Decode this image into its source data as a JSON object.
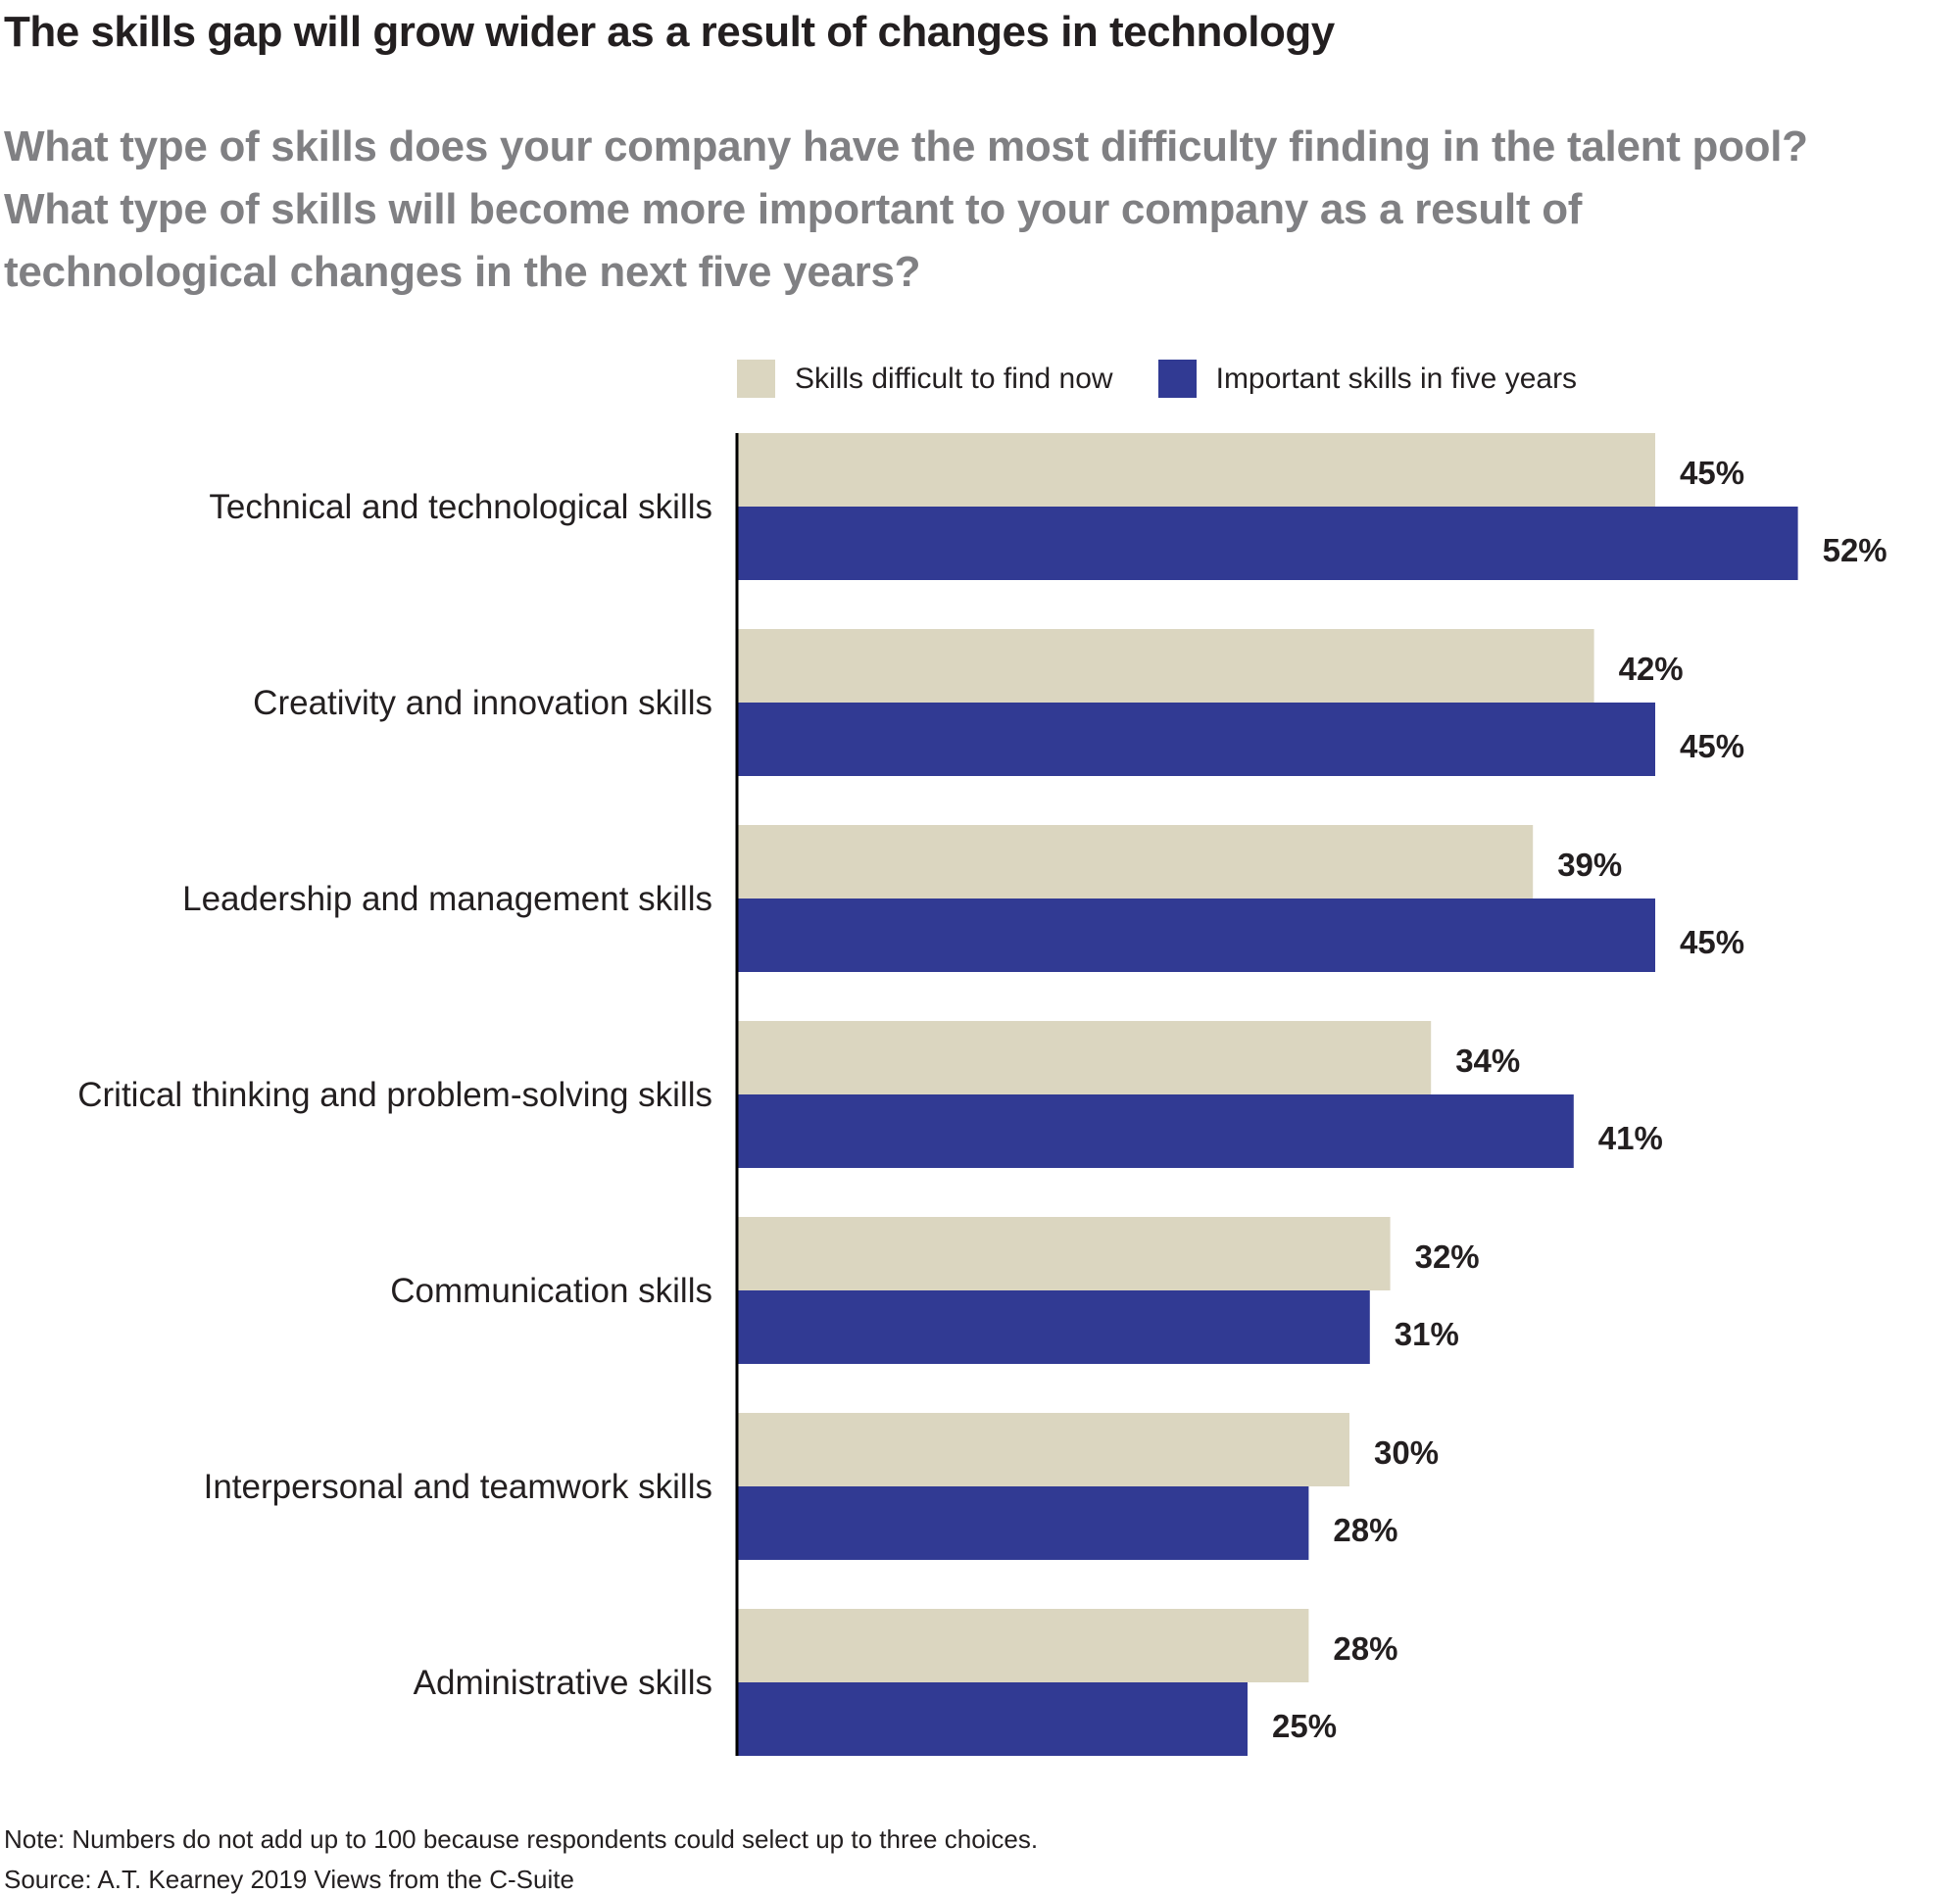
{
  "title": "The skills gap will grow wider as a result of changes in technology",
  "subtitle_lines": [
    "What type of skills does your company have the most difficulty finding in the talent pool?",
    "What type of skills will become more important to your company as a result of",
    "technological changes in the next five years?"
  ],
  "note": "Note: Numbers do not add up to 100 because respondents could select up to three choices.",
  "source": "Source: A.T. Kearney 2019 Views from the C-Suite",
  "chart_data": {
    "type": "bar",
    "orientation": "horizontal",
    "title": "The skills gap will grow wider as a result of changes in technology",
    "xlabel": "",
    "ylabel": "",
    "xlim": [
      0,
      60
    ],
    "grid": false,
    "legend_position": "top",
    "value_suffix": "%",
    "categories": [
      "Technical and technological skills",
      "Creativity and innovation skills",
      "Leadership and management skills",
      "Critical thinking and problem-solving skills",
      "Communication skills",
      "Interpersonal and teamwork skills",
      "Administrative skills"
    ],
    "series": [
      {
        "name": "Skills difficult to find now",
        "color": "#dbd6c0",
        "values": [
          45,
          42,
          39,
          34,
          32,
          30,
          28
        ]
      },
      {
        "name": "Important skills in five years",
        "color": "#313a93",
        "values": [
          52,
          45,
          45,
          41,
          31,
          28,
          25
        ]
      }
    ]
  }
}
